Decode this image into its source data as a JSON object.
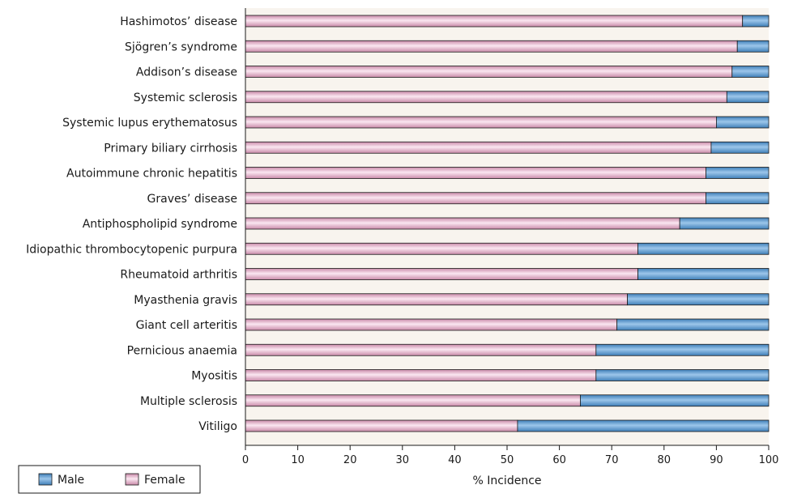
{
  "chart_data": {
    "type": "bar",
    "orientation": "horizontal",
    "stacked": true,
    "categories": [
      "Hashimotos’ disease",
      "Sjögren’s syndrome",
      "Addison’s disease",
      "Systemic sclerosis",
      "Systemic lupus erythematosus",
      "Primary biliary cirrhosis",
      "Autoimmune chronic hepatitis",
      "Graves’ disease",
      "Antiphospholipid syndrome",
      "Idiopathic thrombocytopenic purpura",
      "Rheumatoid arthritis",
      "Myasthenia gravis",
      "Giant cell arteritis",
      "Pernicious anaemia",
      "Myositis",
      "Multiple sclerosis",
      "Vitiligo"
    ],
    "series": [
      {
        "name": "Female",
        "color": "#e6a9c9",
        "values": [
          95,
          94,
          93,
          92,
          90,
          89,
          88,
          88,
          83,
          75,
          75,
          73,
          71,
          67,
          67,
          64,
          52
        ]
      },
      {
        "name": "Male",
        "color": "#5b9bd0",
        "values": [
          5,
          6,
          7,
          8,
          10,
          11,
          12,
          12,
          17,
          25,
          25,
          27,
          29,
          33,
          33,
          36,
          48
        ]
      }
    ],
    "xlabel": "% Incidence",
    "xlim": [
      0,
      100
    ],
    "xticks": [
      0,
      10,
      20,
      30,
      40,
      50,
      60,
      70,
      80,
      90,
      100
    ],
    "legend": {
      "position": "bottom-left",
      "entries": [
        {
          "label": "Male",
          "color": "#5b9bd0"
        },
        {
          "label": "Female",
          "color": "#e6a9c9"
        }
      ]
    }
  }
}
